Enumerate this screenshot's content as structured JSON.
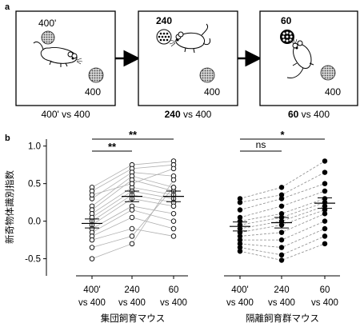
{
  "panel_a": {
    "letter": "a",
    "boxes": [
      {
        "label_top": "400'",
        "label_bottom": "400",
        "caption_num": "400'",
        "caption_rest": " vs 400",
        "caption_bold": false
      },
      {
        "label_top": "240",
        "label_bottom": "400",
        "caption_num": "240",
        "caption_rest": " vs 400",
        "caption_bold": true
      },
      {
        "label_top": "60",
        "label_bottom": "400",
        "caption_num": "60",
        "caption_rest": " vs 400",
        "caption_bold": true
      }
    ]
  },
  "panel_b": {
    "letter": "b"
  },
  "chart_data": {
    "type": "scatter",
    "ylabel": "新奇物体識別指数",
    "ylim": [
      -0.6,
      1.05
    ],
    "yticks": [
      "1.0",
      "0.5",
      "0.0",
      "-0.5"
    ],
    "groups": [
      {
        "name": "集団飼育マウス",
        "marker": "open",
        "line_style": "solid",
        "conditions": [
          "400'\nvs 400",
          "240\nvs 400",
          "60\nvs 400"
        ],
        "condition_lines": [
          [
            "400'",
            "vs 400"
          ],
          [
            "240",
            "vs 400"
          ],
          [
            "60",
            "vs 400"
          ]
        ],
        "means": [
          -0.03,
          0.33,
          0.33
        ],
        "sem": [
          0.06,
          0.07,
          0.07
        ],
        "subjects": [
          [
            0.45,
            0.75,
            0.8
          ],
          [
            0.4,
            0.7,
            0.75
          ],
          [
            0.3,
            0.65,
            0.6
          ],
          [
            0.2,
            0.6,
            0.45
          ],
          [
            0.15,
            0.55,
            0.4
          ],
          [
            0.1,
            0.45,
            0.35
          ],
          [
            0.05,
            0.4,
            0.3
          ],
          [
            0.0,
            0.35,
            0.25
          ],
          [
            -0.05,
            0.3,
            0.2
          ],
          [
            -0.1,
            0.2,
            0.1
          ],
          [
            -0.15,
            0.15,
            0.0
          ],
          [
            -0.2,
            0.05,
            -0.1
          ],
          [
            -0.25,
            -0.1,
            -0.2
          ],
          [
            -0.35,
            -0.2,
            0.45
          ],
          [
            -0.5,
            -0.3,
            0.55
          ],
          [
            0.35,
            0.5,
            0.7
          ]
        ],
        "significance": [
          {
            "from": 0,
            "to": 1,
            "label": "**"
          },
          {
            "from": 0,
            "to": 2,
            "label": "**"
          }
        ]
      },
      {
        "name": "隔離飼育群マウス",
        "marker": "filled",
        "line_style": "dashed",
        "conditions": [
          "400'\nvs 400",
          "240\nvs 400",
          "60\nvs 400"
        ],
        "condition_lines": [
          [
            "400'",
            "vs 400"
          ],
          [
            "240",
            "vs 400"
          ],
          [
            "60",
            "vs 400"
          ]
        ],
        "means": [
          -0.07,
          -0.02,
          0.24
        ],
        "sem": [
          0.06,
          0.07,
          0.07
        ],
        "subjects": [
          [
            0.3,
            0.45,
            0.8
          ],
          [
            0.25,
            0.35,
            0.65
          ],
          [
            0.15,
            0.3,
            0.5
          ],
          [
            0.05,
            0.2,
            0.4
          ],
          [
            0.0,
            0.1,
            0.3
          ],
          [
            -0.05,
            0.05,
            0.25
          ],
          [
            -0.1,
            0.0,
            0.2
          ],
          [
            -0.15,
            -0.05,
            0.15
          ],
          [
            -0.2,
            -0.15,
            0.1
          ],
          [
            -0.25,
            -0.25,
            0.0
          ],
          [
            -0.3,
            -0.35,
            -0.1
          ],
          [
            -0.35,
            -0.45,
            -0.2
          ],
          [
            -0.4,
            -0.52,
            -0.3
          ]
        ],
        "significance": [
          {
            "from": 0,
            "to": 1,
            "label": "ns"
          },
          {
            "from": 0,
            "to": 2,
            "label": "*"
          }
        ]
      }
    ]
  }
}
